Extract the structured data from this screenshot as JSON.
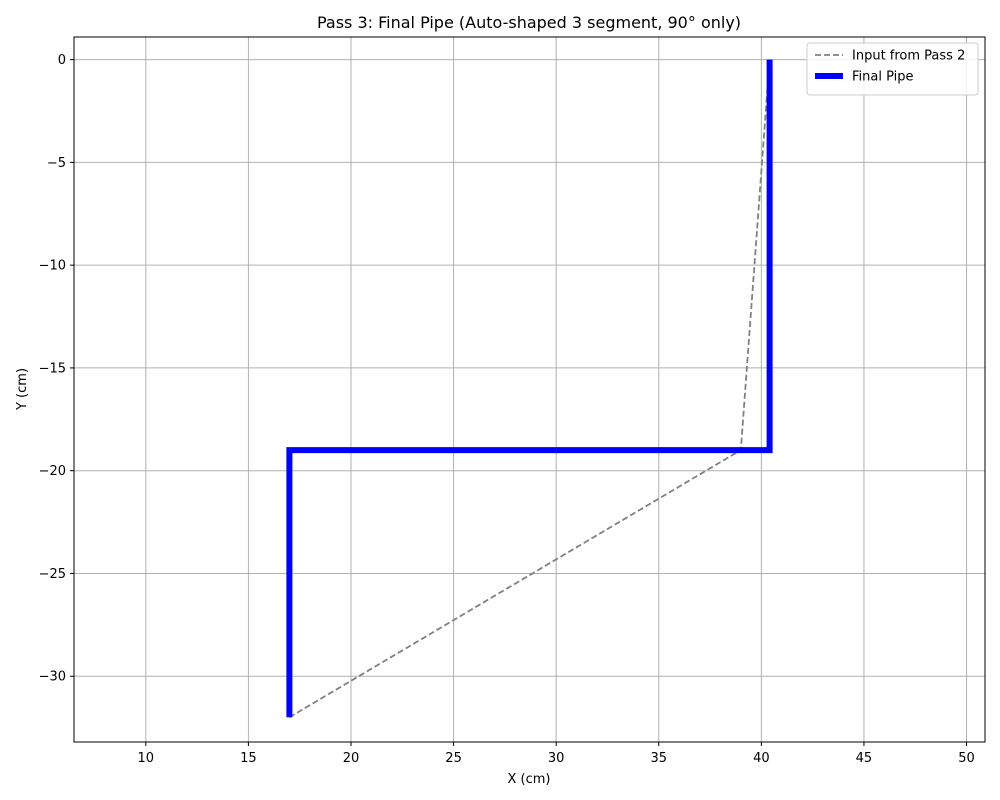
{
  "chart_data": {
    "type": "line",
    "title": "Pass 3: Final Pipe (Auto-shaped 3 segment, 90° only)",
    "xlabel": "X (cm)",
    "ylabel": "Y (cm)",
    "xlim": [
      6.5,
      50.9
    ],
    "ylim": [
      -33.2,
      1.1
    ],
    "xticks": [
      10,
      15,
      20,
      25,
      30,
      35,
      40,
      45,
      50
    ],
    "yticks": [
      0,
      -5,
      -10,
      -15,
      -20,
      -25,
      -30
    ],
    "xtick_labels": [
      "10",
      "15",
      "20",
      "25",
      "30",
      "35",
      "40",
      "45",
      "50"
    ],
    "ytick_labels": [
      "0",
      "−5",
      "−10",
      "−15",
      "−20",
      "−25",
      "−30"
    ],
    "grid": true,
    "legend_position": "top-right",
    "series": [
      {
        "name": "Input from Pass 2",
        "color": "#808080",
        "style": "dashed",
        "x": [
          17.0,
          39.0,
          40.4
        ],
        "y": [
          -32.0,
          -19.0,
          0.0
        ]
      },
      {
        "name": "Final Pipe",
        "color": "#0000ff",
        "style": "solid-thick",
        "x": [
          17.0,
          17.0,
          40.4,
          40.4
        ],
        "y": [
          -32.0,
          -19.0,
          -19.0,
          0.0
        ]
      }
    ]
  }
}
